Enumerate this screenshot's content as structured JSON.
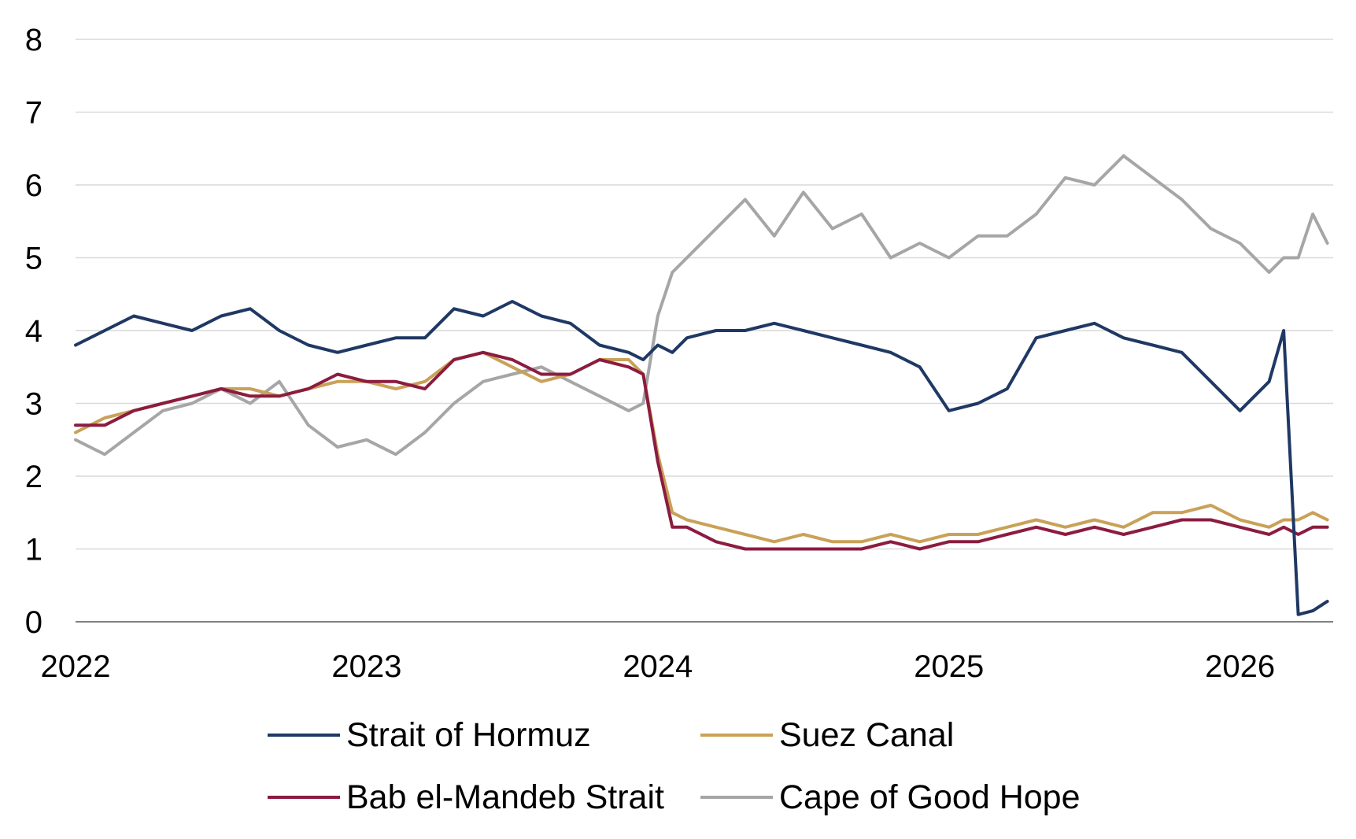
{
  "chart_data": {
    "type": "line",
    "title": "",
    "xlabel": "",
    "ylabel": "",
    "xlim": [
      2022.0,
      2026.32
    ],
    "ylim": [
      0,
      8
    ],
    "yticks": [
      "0",
      "1",
      "2",
      "3",
      "4",
      "5",
      "6",
      "7",
      "8"
    ],
    "xticks": [
      "2022",
      "2023",
      "2024",
      "2025",
      "2026"
    ],
    "grid": "horizontal",
    "legend_position": "bottom",
    "x": [
      2022.0,
      2022.1,
      2022.2,
      2022.3,
      2022.4,
      2022.5,
      2022.6,
      2022.7,
      2022.8,
      2022.9,
      2023.0,
      2023.1,
      2023.2,
      2023.3,
      2023.4,
      2023.5,
      2023.6,
      2023.7,
      2023.8,
      2023.9,
      2023.95,
      2024.0,
      2024.05,
      2024.1,
      2024.2,
      2024.3,
      2024.4,
      2024.5,
      2024.6,
      2024.7,
      2024.8,
      2024.9,
      2025.0,
      2025.1,
      2025.2,
      2025.3,
      2025.4,
      2025.5,
      2025.6,
      2025.7,
      2025.8,
      2025.9,
      2026.0,
      2026.1,
      2026.15,
      2026.2,
      2026.25,
      2026.3
    ],
    "series": [
      {
        "name": "Strait of Hormuz",
        "color": "#1f3864",
        "values": [
          3.8,
          4.0,
          4.2,
          4.1,
          4.0,
          4.2,
          4.3,
          4.0,
          3.8,
          3.7,
          3.8,
          3.9,
          3.9,
          4.3,
          4.2,
          4.4,
          4.2,
          4.1,
          3.8,
          3.7,
          3.6,
          3.8,
          3.7,
          3.9,
          4.0,
          4.0,
          4.1,
          4.0,
          3.9,
          3.8,
          3.7,
          3.5,
          2.9,
          3.0,
          3.2,
          3.9,
          4.0,
          4.1,
          3.9,
          3.8,
          3.7,
          3.3,
          2.9,
          3.3,
          4.0,
          0.1,
          0.15,
          0.28
        ]
      },
      {
        "name": "Suez Canal",
        "color": "#c9a158",
        "values": [
          2.6,
          2.8,
          2.9,
          3.0,
          3.1,
          3.2,
          3.2,
          3.1,
          3.2,
          3.3,
          3.3,
          3.2,
          3.3,
          3.6,
          3.7,
          3.5,
          3.3,
          3.4,
          3.6,
          3.6,
          3.4,
          2.3,
          1.5,
          1.4,
          1.3,
          1.2,
          1.1,
          1.2,
          1.1,
          1.1,
          1.2,
          1.1,
          1.2,
          1.2,
          1.3,
          1.4,
          1.3,
          1.4,
          1.3,
          1.5,
          1.5,
          1.6,
          1.4,
          1.3,
          1.4,
          1.4,
          1.5,
          1.4
        ]
      },
      {
        "name": "Bab el-Mandeb Strait",
        "color": "#8b1c3f",
        "values": [
          2.7,
          2.7,
          2.9,
          3.0,
          3.1,
          3.2,
          3.1,
          3.1,
          3.2,
          3.4,
          3.3,
          3.3,
          3.2,
          3.6,
          3.7,
          3.6,
          3.4,
          3.4,
          3.6,
          3.5,
          3.4,
          2.2,
          1.3,
          1.3,
          1.1,
          1.0,
          1.0,
          1.0,
          1.0,
          1.0,
          1.1,
          1.0,
          1.1,
          1.1,
          1.2,
          1.3,
          1.2,
          1.3,
          1.2,
          1.3,
          1.4,
          1.4,
          1.3,
          1.2,
          1.3,
          1.2,
          1.3,
          1.3
        ]
      },
      {
        "name": "Cape of Good Hope",
        "color": "#a6a6a6",
        "values": [
          2.5,
          2.3,
          2.6,
          2.9,
          3.0,
          3.2,
          3.0,
          3.3,
          2.7,
          2.4,
          2.5,
          2.3,
          2.6,
          3.0,
          3.3,
          3.4,
          3.5,
          3.3,
          3.1,
          2.9,
          3.0,
          4.2,
          4.8,
          5.0,
          5.4,
          5.8,
          5.3,
          5.9,
          5.4,
          5.6,
          5.0,
          5.2,
          5.0,
          5.3,
          5.3,
          5.6,
          6.1,
          6.0,
          6.4,
          6.1,
          5.8,
          5.4,
          5.2,
          4.8,
          5.0,
          5.0,
          5.6,
          5.2
        ]
      }
    ]
  }
}
